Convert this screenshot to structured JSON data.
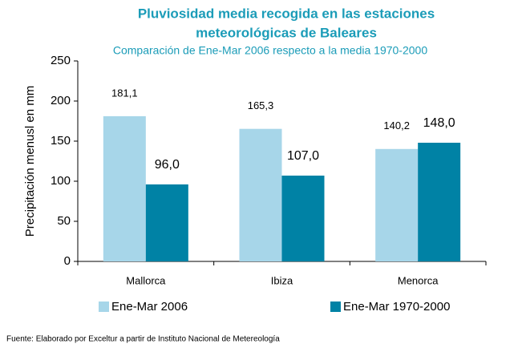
{
  "chart_data": {
    "type": "bar",
    "title": [
      "Pluviosidad media recogida en las estaciones",
      "meteorológicas de Baleares"
    ],
    "subtitle": "Comparación de Ene-Mar 2006 respecto a la media 1970-2000",
    "y_label": "Precipitación menusl en mm",
    "categories": [
      "Mallorca",
      "Ibiza",
      "Menorca"
    ],
    "series": [
      {
        "name": "Ene-Mar 2006",
        "color": "#a7d6e9",
        "values": [
          181.1,
          165.3,
          140.2
        ],
        "value_labels": [
          "181,1",
          "165,3",
          "140,2"
        ]
      },
      {
        "name": "Ene-Mar 1970-2000",
        "color": "#0082a5",
        "values": [
          96,
          107,
          148
        ],
        "value_labels": [
          "96,0",
          "107,0",
          "148,0"
        ]
      }
    ],
    "ylim": [
      0,
      250
    ],
    "yticks": [
      0,
      50,
      100,
      150,
      200,
      250
    ],
    "note": "Fuente: Elaborado por Exceltur a partir de Instituto Nacional de Metereología"
  }
}
